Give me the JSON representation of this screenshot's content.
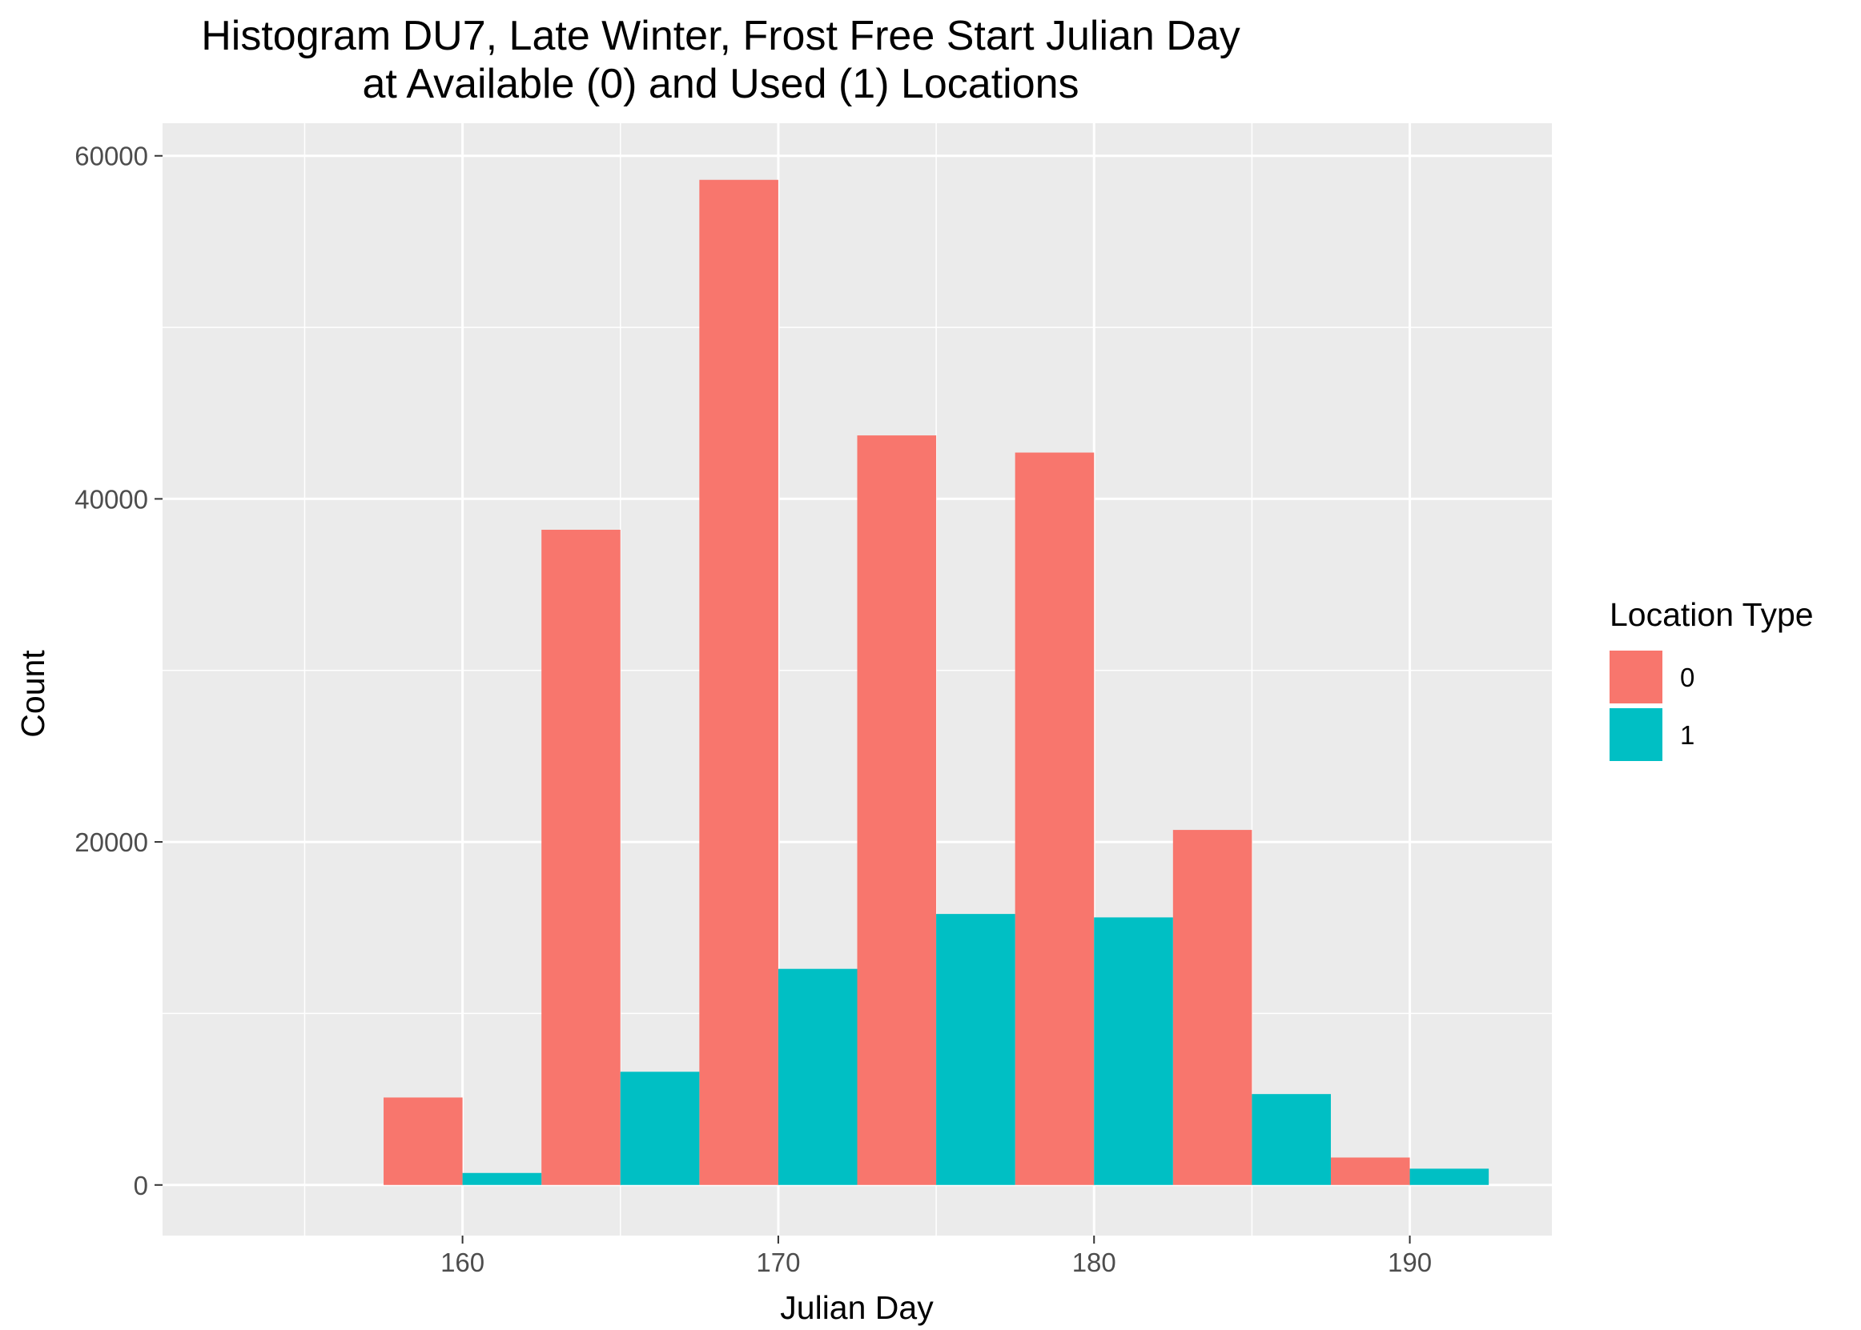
{
  "chart_data": {
    "type": "bar",
    "title_lines": [
      "Histogram DU7, Late Winter, Frost Free Start Julian Day",
      "at Available (0) and Used (1) Locations"
    ],
    "xlabel": "Julian Day",
    "ylabel": "Count",
    "xlim": [
      150.5,
      194.5
    ],
    "ylim": [
      -2950,
      61900
    ],
    "x_ticks": [
      160,
      170,
      180,
      190
    ],
    "y_ticks": [
      0,
      20000,
      40000,
      60000
    ],
    "bin_width": 5,
    "bin_centers": [
      160,
      165,
      170,
      175,
      180,
      185,
      190
    ],
    "grid": true,
    "legend": {
      "title": "Location Type",
      "placement": "right"
    },
    "series": [
      {
        "name": "0",
        "color": "#F8766D",
        "values": [
          5100,
          38200,
          58600,
          43700,
          42700,
          20700,
          1600
        ]
      },
      {
        "name": "1",
        "color": "#00BFC4",
        "values": [
          700,
          6600,
          12600,
          15800,
          15600,
          5300,
          950
        ]
      }
    ]
  }
}
